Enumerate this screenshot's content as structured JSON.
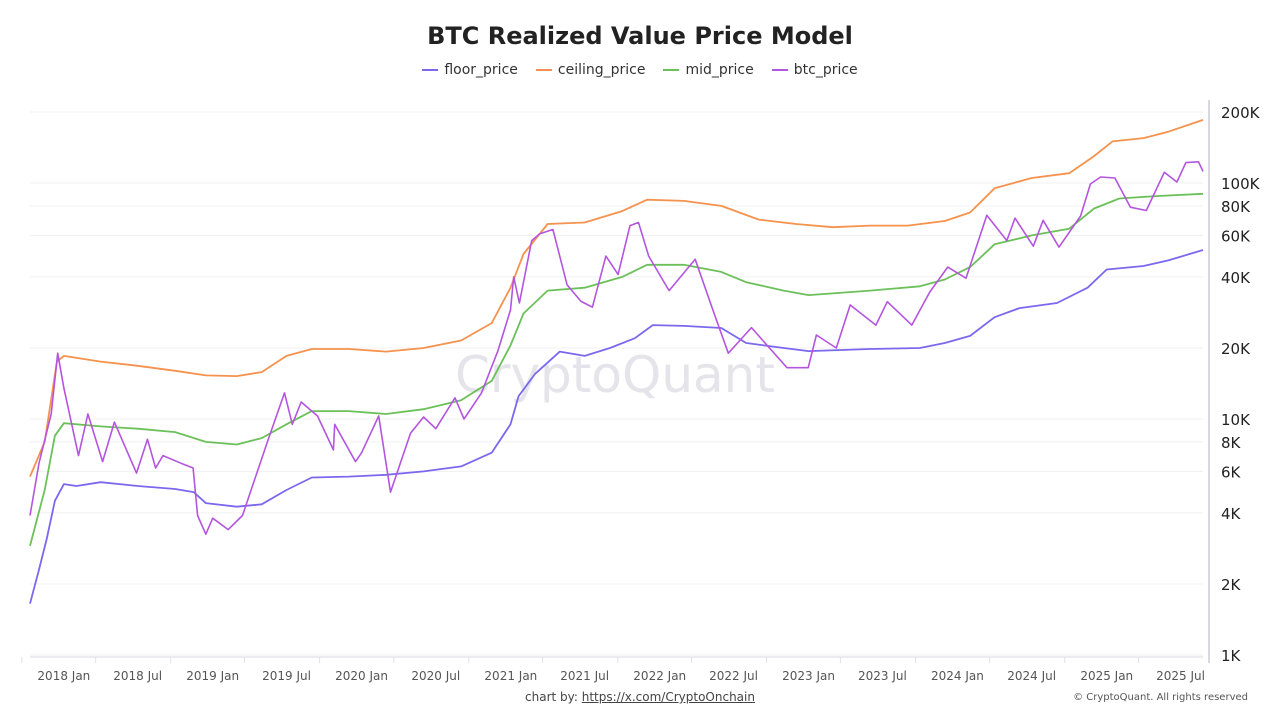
{
  "chart_data": {
    "type": "line",
    "title": "BTC Realized Value Price Model",
    "xlabel": "",
    "ylabel": "",
    "y_scale": "log",
    "ylim": [
      1000,
      220000
    ],
    "y_ticks": [
      1000,
      2000,
      4000,
      6000,
      8000,
      10000,
      20000,
      40000,
      60000,
      80000,
      100000,
      200000
    ],
    "y_tick_labels": [
      "1K",
      "2K",
      "4K",
      "6K",
      "8K",
      "10K",
      "20K",
      "40K",
      "60K",
      "80K",
      "100K",
      "200K"
    ],
    "y_axis_side": "right",
    "xlim": [
      "2017-10-10",
      "2025-08-25"
    ],
    "x_ticks": [
      "2018-01-01",
      "2018-07-01",
      "2019-01-01",
      "2019-07-01",
      "2020-01-01",
      "2020-07-01",
      "2021-01-01",
      "2021-07-01",
      "2022-01-01",
      "2022-07-01",
      "2023-01-01",
      "2023-07-01",
      "2024-01-01",
      "2024-07-01",
      "2025-01-01",
      "2025-07-01"
    ],
    "x_tick_labels": [
      "2018 Jan",
      "2018 Jul",
      "2019 Jan",
      "2019 Jul",
      "2020 Jan",
      "2020 Jul",
      "2021 Jan",
      "2021 Jul",
      "2022 Jan",
      "2022 Jul",
      "2023 Jan",
      "2023 Jul",
      "2024 Jan",
      "2024 Jul",
      "2025 Jan",
      "2025 Jul"
    ],
    "grid": true,
    "legend_position": "top",
    "series": [
      {
        "name": "floor_price",
        "color": "#7b68ee",
        "points": [
          [
            "2017-10-10",
            1650
          ],
          [
            "2017-11-01",
            2300
          ],
          [
            "2017-11-20",
            3100
          ],
          [
            "2017-12-10",
            4500
          ],
          [
            "2018-01-01",
            5300
          ],
          [
            "2018-02-01",
            5200
          ],
          [
            "2018-04-01",
            5400
          ],
          [
            "2018-07-01",
            5200
          ],
          [
            "2018-10-01",
            5050
          ],
          [
            "2018-11-15",
            4900
          ],
          [
            "2018-12-15",
            4400
          ],
          [
            "2019-03-01",
            4250
          ],
          [
            "2019-05-01",
            4350
          ],
          [
            "2019-07-01",
            5000
          ],
          [
            "2019-09-01",
            5650
          ],
          [
            "2019-12-01",
            5700
          ],
          [
            "2020-03-01",
            5800
          ],
          [
            "2020-06-01",
            6000
          ],
          [
            "2020-09-01",
            6300
          ],
          [
            "2020-11-15",
            7200
          ],
          [
            "2020-12-31",
            9500
          ],
          [
            "2021-01-20",
            12500
          ],
          [
            "2021-03-01",
            15500
          ],
          [
            "2021-05-01",
            19300
          ],
          [
            "2021-07-01",
            18500
          ],
          [
            "2021-09-01",
            20000
          ],
          [
            "2021-11-01",
            22000
          ],
          [
            "2021-12-15",
            25000
          ],
          [
            "2022-03-01",
            24800
          ],
          [
            "2022-06-01",
            24300
          ],
          [
            "2022-08-01",
            21000
          ],
          [
            "2022-11-01",
            20000
          ],
          [
            "2023-01-01",
            19400
          ],
          [
            "2023-06-01",
            19800
          ],
          [
            "2023-10-01",
            20000
          ],
          [
            "2023-12-01",
            21000
          ],
          [
            "2024-02-01",
            22500
          ],
          [
            "2024-04-01",
            27000
          ],
          [
            "2024-06-01",
            29500
          ],
          [
            "2024-09-01",
            31000
          ],
          [
            "2024-11-15",
            36000
          ],
          [
            "2025-01-01",
            43000
          ],
          [
            "2025-04-01",
            44500
          ],
          [
            "2025-06-01",
            47000
          ],
          [
            "2025-08-25",
            52000
          ]
        ]
      },
      {
        "name": "ceiling_price",
        "color": "#f5924e",
        "points": [
          [
            "2017-10-10",
            5700
          ],
          [
            "2017-11-15",
            8000
          ],
          [
            "2017-12-15",
            17500
          ],
          [
            "2018-01-01",
            18500
          ],
          [
            "2018-04-01",
            17500
          ],
          [
            "2018-07-01",
            16800
          ],
          [
            "2018-10-01",
            16000
          ],
          [
            "2018-12-15",
            15300
          ],
          [
            "2019-03-01",
            15200
          ],
          [
            "2019-05-01",
            15800
          ],
          [
            "2019-07-01",
            18500
          ],
          [
            "2019-09-01",
            19800
          ],
          [
            "2019-12-01",
            19800
          ],
          [
            "2020-03-01",
            19300
          ],
          [
            "2020-06-01",
            20000
          ],
          [
            "2020-09-01",
            21500
          ],
          [
            "2020-11-15",
            25500
          ],
          [
            "2020-12-31",
            36000
          ],
          [
            "2021-02-01",
            50000
          ],
          [
            "2021-04-01",
            67000
          ],
          [
            "2021-07-01",
            68000
          ],
          [
            "2021-10-01",
            76000
          ],
          [
            "2021-12-01",
            85000
          ],
          [
            "2022-03-01",
            84000
          ],
          [
            "2022-06-01",
            80000
          ],
          [
            "2022-09-01",
            70000
          ],
          [
            "2022-12-01",
            67000
          ],
          [
            "2023-03-01",
            65000
          ],
          [
            "2023-06-01",
            66000
          ],
          [
            "2023-09-01",
            66000
          ],
          [
            "2023-12-01",
            69000
          ],
          [
            "2024-02-01",
            75000
          ],
          [
            "2024-04-01",
            95000
          ],
          [
            "2024-07-01",
            105000
          ],
          [
            "2024-10-01",
            110000
          ],
          [
            "2024-12-01",
            130000
          ],
          [
            "2025-01-15",
            150000
          ],
          [
            "2025-04-01",
            155000
          ],
          [
            "2025-06-01",
            165000
          ],
          [
            "2025-08-25",
            185000
          ]
        ]
      },
      {
        "name": "mid_price",
        "color": "#6cc05a",
        "points": [
          [
            "2017-10-10",
            2900
          ],
          [
            "2017-11-15",
            5000
          ],
          [
            "2017-12-10",
            8500
          ],
          [
            "2018-01-01",
            9600
          ],
          [
            "2018-04-01",
            9300
          ],
          [
            "2018-07-01",
            9100
          ],
          [
            "2018-10-01",
            8800
          ],
          [
            "2018-12-15",
            8000
          ],
          [
            "2019-03-01",
            7800
          ],
          [
            "2019-05-01",
            8300
          ],
          [
            "2019-07-01",
            9500
          ],
          [
            "2019-09-01",
            10800
          ],
          [
            "2019-12-01",
            10800
          ],
          [
            "2020-03-01",
            10500
          ],
          [
            "2020-06-01",
            11000
          ],
          [
            "2020-09-01",
            12000
          ],
          [
            "2020-11-15",
            14500
          ],
          [
            "2020-12-31",
            20500
          ],
          [
            "2021-02-01",
            28000
          ],
          [
            "2021-04-01",
            35000
          ],
          [
            "2021-07-01",
            36000
          ],
          [
            "2021-10-01",
            40000
          ],
          [
            "2021-12-01",
            45000
          ],
          [
            "2022-03-01",
            45000
          ],
          [
            "2022-06-01",
            42000
          ],
          [
            "2022-08-01",
            38000
          ],
          [
            "2022-11-01",
            35000
          ],
          [
            "2023-01-01",
            33500
          ],
          [
            "2023-06-01",
            35000
          ],
          [
            "2023-10-01",
            36500
          ],
          [
            "2023-12-01",
            39000
          ],
          [
            "2024-02-01",
            44000
          ],
          [
            "2024-04-01",
            55000
          ],
          [
            "2024-07-01",
            60000
          ],
          [
            "2024-10-01",
            64000
          ],
          [
            "2024-12-01",
            78000
          ],
          [
            "2025-02-01",
            86000
          ],
          [
            "2025-05-01",
            88000
          ],
          [
            "2025-08-25",
            90000
          ]
        ]
      },
      {
        "name": "btc_price",
        "color": "#b455e0",
        "points": [
          [
            "2017-10-10",
            3900
          ],
          [
            "2017-11-01",
            6500
          ],
          [
            "2017-12-01",
            10500
          ],
          [
            "2017-12-17",
            19000
          ],
          [
            "2018-01-01",
            13500
          ],
          [
            "2018-02-06",
            7000
          ],
          [
            "2018-03-01",
            10500
          ],
          [
            "2018-04-06",
            6600
          ],
          [
            "2018-05-05",
            9700
          ],
          [
            "2018-06-28",
            5900
          ],
          [
            "2018-07-25",
            8200
          ],
          [
            "2018-08-14",
            6200
          ],
          [
            "2018-09-01",
            7000
          ],
          [
            "2018-10-15",
            6500
          ],
          [
            "2018-11-14",
            6200
          ],
          [
            "2018-11-25",
            3900
          ],
          [
            "2018-12-15",
            3250
          ],
          [
            "2019-01-01",
            3800
          ],
          [
            "2019-02-08",
            3400
          ],
          [
            "2019-03-15",
            3900
          ],
          [
            "2019-04-05",
            5000
          ],
          [
            "2019-05-15",
            8000
          ],
          [
            "2019-06-26",
            12900
          ],
          [
            "2019-07-15",
            9500
          ],
          [
            "2019-08-06",
            11800
          ],
          [
            "2019-09-15",
            10300
          ],
          [
            "2019-10-24",
            7400
          ],
          [
            "2019-10-27",
            9500
          ],
          [
            "2019-12-17",
            6600
          ],
          [
            "2020-01-01",
            7200
          ],
          [
            "2020-02-12",
            10300
          ],
          [
            "2020-03-12",
            4900
          ],
          [
            "2020-04-30",
            8700
          ],
          [
            "2020-06-01",
            10200
          ],
          [
            "2020-07-01",
            9100
          ],
          [
            "2020-08-17",
            12300
          ],
          [
            "2020-09-08",
            10000
          ],
          [
            "2020-10-21",
            12900
          ],
          [
            "2020-11-30",
            19400
          ],
          [
            "2020-12-31",
            29000
          ],
          [
            "2021-01-08",
            40000
          ],
          [
            "2021-01-22",
            31000
          ],
          [
            "2021-02-21",
            57000
          ],
          [
            "2021-03-13",
            61000
          ],
          [
            "2021-04-14",
            63500
          ],
          [
            "2021-05-19",
            37000
          ],
          [
            "2021-06-22",
            31500
          ],
          [
            "2021-07-20",
            29800
          ],
          [
            "2021-08-22",
            49000
          ],
          [
            "2021-09-21",
            41000
          ],
          [
            "2021-10-20",
            66000
          ],
          [
            "2021-11-10",
            68000
          ],
          [
            "2021-12-05",
            49000
          ],
          [
            "2022-01-24",
            35000
          ],
          [
            "2022-03-29",
            47500
          ],
          [
            "2022-05-12",
            28700
          ],
          [
            "2022-06-18",
            19000
          ],
          [
            "2022-08-14",
            24400
          ],
          [
            "2022-09-10",
            21600
          ],
          [
            "2022-11-09",
            16500
          ],
          [
            "2022-12-31",
            16500
          ],
          [
            "2023-01-20",
            22700
          ],
          [
            "2023-03-10",
            20000
          ],
          [
            "2023-04-13",
            30400
          ],
          [
            "2023-06-15",
            25000
          ],
          [
            "2023-07-13",
            31400
          ],
          [
            "2023-09-11",
            25000
          ],
          [
            "2023-10-25",
            34500
          ],
          [
            "2023-12-08",
            44000
          ],
          [
            "2024-01-22",
            39500
          ],
          [
            "2024-03-13",
            73000
          ],
          [
            "2024-05-01",
            57000
          ],
          [
            "2024-05-21",
            71000
          ],
          [
            "2024-07-05",
            54000
          ],
          [
            "2024-07-29",
            69500
          ],
          [
            "2024-09-06",
            53500
          ],
          [
            "2024-10-29",
            72500
          ],
          [
            "2024-11-22",
            99000
          ],
          [
            "2024-12-17",
            106000
          ],
          [
            "2025-01-21",
            105000
          ],
          [
            "2025-02-28",
            79000
          ],
          [
            "2025-04-08",
            76500
          ],
          [
            "2025-05-22",
            111000
          ],
          [
            "2025-06-22",
            101000
          ],
          [
            "2025-07-14",
            122000
          ],
          [
            "2025-08-14",
            123000
          ],
          [
            "2025-08-25",
            112000
          ]
        ]
      }
    ]
  },
  "watermark": "CryptoQuant",
  "footer": {
    "chart_by_label": "chart by:",
    "chart_by_link": "https://x.com/CryptoOnchain",
    "copyright": "© CryptoQuant. All rights reserved"
  }
}
